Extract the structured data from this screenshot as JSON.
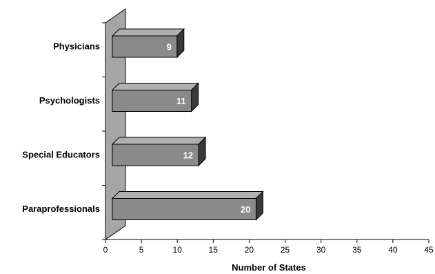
{
  "chart_data": {
    "type": "bar",
    "orientation": "horizontal",
    "style": "3d",
    "categories": [
      "Physicians",
      "Psychologists",
      "Special Educators",
      "Paraprofessionals"
    ],
    "values": [
      9,
      11,
      12,
      20
    ],
    "xlabel": "Number of States",
    "ylabel": "",
    "xlim": [
      0,
      45
    ],
    "xticks": [
      0,
      5,
      10,
      15,
      20,
      25,
      30,
      35,
      40,
      45
    ],
    "grid": false,
    "legend": "none",
    "colors": {
      "bar_front": "#8a8a8a",
      "bar_top": "#b0b0b0",
      "bar_side": "#3a3a3a",
      "wall": "#a6a6a6"
    }
  }
}
